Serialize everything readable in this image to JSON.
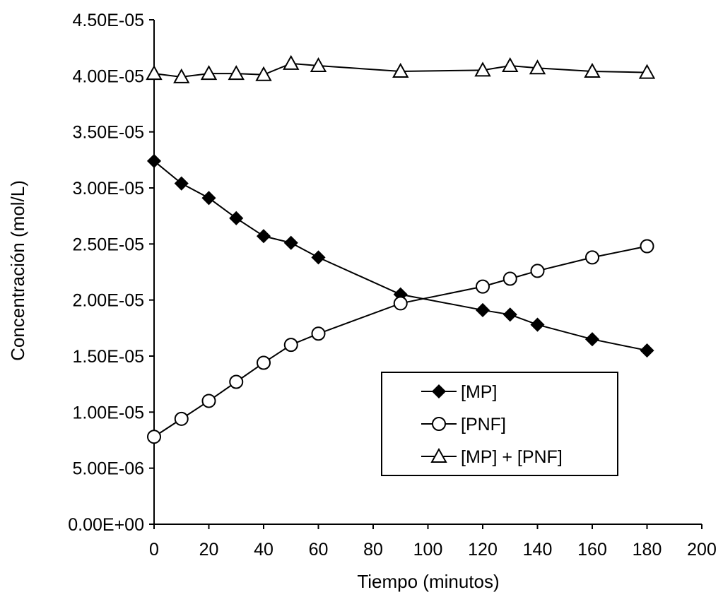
{
  "chart_data": {
    "type": "line",
    "title": "",
    "xlabel": "Tiempo (minutos)",
    "ylabel": "Concentración (mol/L)",
    "xlim": [
      0,
      200
    ],
    "ylim": [
      0,
      4.5e-05
    ],
    "x_ticks": [
      0,
      20,
      40,
      60,
      80,
      100,
      120,
      140,
      160,
      180,
      200
    ],
    "x_tick_labels": [
      "0",
      "20",
      "40",
      "60",
      "80",
      "100",
      "120",
      "140",
      "160",
      "180",
      "200"
    ],
    "y_ticks": [
      0,
      5e-06,
      1e-05,
      1.5e-05,
      2e-05,
      2.5e-05,
      3e-05,
      3.5e-05,
      4e-05,
      4.5e-05
    ],
    "y_tick_labels": [
      "0.00E+00",
      "5.00E-06",
      "1.00E-05",
      "1.50E-05",
      "2.00E-05",
      "2.50E-05",
      "3.00E-05",
      "3.50E-05",
      "4.00E-05",
      "4.50E-05"
    ],
    "grid": false,
    "legend_position": "lower-right",
    "series": [
      {
        "name": "[MP]",
        "marker": "filled-diamond",
        "x": [
          0,
          10,
          20,
          30,
          40,
          50,
          60,
          90,
          120,
          130,
          140,
          160,
          180
        ],
        "y": [
          3.24e-05,
          3.04e-05,
          2.91e-05,
          2.73e-05,
          2.57e-05,
          2.51e-05,
          2.38e-05,
          2.05e-05,
          1.91e-05,
          1.87e-05,
          1.78e-05,
          1.65e-05,
          1.55e-05
        ]
      },
      {
        "name": "[PNF]",
        "marker": "open-circle",
        "x": [
          0,
          10,
          20,
          30,
          40,
          50,
          60,
          90,
          120,
          130,
          140,
          160,
          180
        ],
        "y": [
          7.8e-06,
          9.4e-06,
          1.1e-05,
          1.27e-05,
          1.44e-05,
          1.6e-05,
          1.7e-05,
          1.97e-05,
          2.12e-05,
          2.19e-05,
          2.26e-05,
          2.38e-05,
          2.48e-05
        ]
      },
      {
        "name": "[MP] + [PNF]",
        "marker": "open-triangle",
        "x": [
          0,
          10,
          20,
          30,
          40,
          50,
          60,
          90,
          120,
          130,
          140,
          160,
          180
        ],
        "y": [
          4.02e-05,
          3.99e-05,
          4.02e-05,
          4.02e-05,
          4.01e-05,
          4.11e-05,
          4.09e-05,
          4.04e-05,
          4.05e-05,
          4.09e-05,
          4.07e-05,
          4.04e-05,
          4.03e-05
        ]
      }
    ]
  }
}
